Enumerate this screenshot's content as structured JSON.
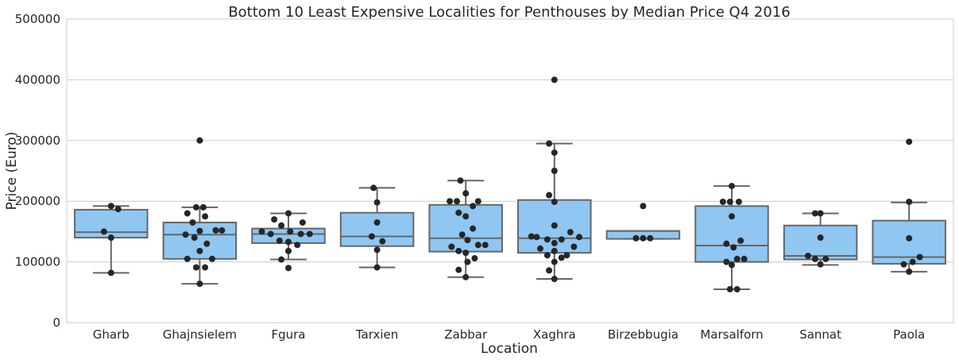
{
  "chart_data": {
    "type": "box",
    "title": "Bottom 10 Least Expensive Localities for Penthouses by Median Price Q4 2016",
    "xlabel": "Location",
    "ylabel": "Price (Euro)",
    "ylim": [
      0,
      500000
    ],
    "yticks": [
      "0",
      "100000",
      "200000",
      "300000",
      "400000",
      "500000"
    ],
    "grid": true,
    "box_color": "#8fc7f2",
    "categories": [
      "Gharb",
      "Ghajnsielem",
      "Fgura",
      "Tarxien",
      "Zabbar",
      "Xaghra",
      "Birzebbugia",
      "Marsalforn",
      "Sannat",
      "Paola"
    ],
    "boxes": [
      {
        "q1": 140000,
        "median": 149000,
        "q3": 186000,
        "whisker_low": 82000,
        "whisker_high": 192000,
        "points": [
          [
            0,
            192000
          ],
          [
            0.08,
            187000
          ],
          [
            -0.08,
            150000
          ],
          [
            0,
            140000
          ],
          [
            0,
            82000
          ]
        ]
      },
      {
        "q1": 105000,
        "median": 145000,
        "q3": 165000,
        "whisker_low": 64000,
        "whisker_high": 190000,
        "points": [
          [
            0,
            300000
          ],
          [
            -0.04,
            190000
          ],
          [
            0.04,
            190000
          ],
          [
            -0.14,
            180000
          ],
          [
            0.06,
            175000
          ],
          [
            -0.08,
            165000
          ],
          [
            0.25,
            152000
          ],
          [
            0.18,
            152000
          ],
          [
            0,
            151000
          ],
          [
            -0.16,
            145000
          ],
          [
            -0.06,
            140000
          ],
          [
            0.08,
            130000
          ],
          [
            0,
            118000
          ],
          [
            -0.14,
            105000
          ],
          [
            0.14,
            105000
          ],
          [
            -0.04,
            91000
          ],
          [
            0.06,
            91000
          ],
          [
            0,
            64000
          ]
        ]
      },
      {
        "q1": 131000,
        "median": 146000,
        "q3": 155000,
        "whisker_low": 104000,
        "whisker_high": 180000,
        "points": [
          [
            0,
            180000
          ],
          [
            -0.16,
            170000
          ],
          [
            0.16,
            165000
          ],
          [
            -0.08,
            160000
          ],
          [
            -0.3,
            150000
          ],
          [
            0.02,
            150000
          ],
          [
            -0.2,
            146000
          ],
          [
            0.14,
            146000
          ],
          [
            0.24,
            146000
          ],
          [
            -0.1,
            135000
          ],
          [
            0,
            133000
          ],
          [
            0.1,
            128000
          ],
          [
            0,
            118000
          ],
          [
            -0.08,
            104000
          ],
          [
            0,
            90000
          ]
        ]
      },
      {
        "q1": 126000,
        "median": 142000,
        "q3": 181000,
        "whisker_low": 91000,
        "whisker_high": 222000,
        "points": [
          [
            -0.04,
            222000
          ],
          [
            0,
            198000
          ],
          [
            0,
            165000
          ],
          [
            -0.06,
            142000
          ],
          [
            0.06,
            134000
          ],
          [
            0,
            120000
          ],
          [
            0,
            91000
          ]
        ]
      },
      {
        "q1": 117000,
        "median": 139000,
        "q3": 194000,
        "whisker_low": 75000,
        "whisker_high": 234000,
        "points": [
          [
            -0.06,
            234000
          ],
          [
            0,
            213000
          ],
          [
            -0.18,
            200000
          ],
          [
            -0.1,
            200000
          ],
          [
            0.14,
            200000
          ],
          [
            0.08,
            192000
          ],
          [
            -0.08,
            181000
          ],
          [
            0,
            175000
          ],
          [
            0.08,
            155000
          ],
          [
            -0.04,
            145000
          ],
          [
            0.02,
            136000
          ],
          [
            0.14,
            128000
          ],
          [
            0.22,
            128000
          ],
          [
            -0.16,
            125000
          ],
          [
            -0.08,
            118000
          ],
          [
            0,
            115000
          ],
          [
            0.1,
            106000
          ],
          [
            0.02,
            100000
          ],
          [
            -0.08,
            87000
          ],
          [
            0,
            75000
          ]
        ]
      },
      {
        "q1": 115000,
        "median": 139000,
        "q3": 202000,
        "whisker_low": 72000,
        "whisker_high": 295000,
        "points": [
          [
            0,
            400000
          ],
          [
            -0.06,
            295000
          ],
          [
            0,
            280000
          ],
          [
            0,
            250000
          ],
          [
            -0.06,
            210000
          ],
          [
            0,
            199000
          ],
          [
            0,
            160000
          ],
          [
            0.18,
            149000
          ],
          [
            -0.26,
            142000
          ],
          [
            -0.2,
            141000
          ],
          [
            0.28,
            141000
          ],
          [
            -0.08,
            137000
          ],
          [
            0.08,
            137000
          ],
          [
            0,
            131000
          ],
          [
            -0.16,
            122000
          ],
          [
            0.22,
            125000
          ],
          [
            0,
            118000
          ],
          [
            -0.08,
            111000
          ],
          [
            0.14,
            111000
          ],
          [
            0.08,
            107000
          ],
          [
            0,
            100000
          ],
          [
            -0.06,
            86000
          ],
          [
            0,
            72000
          ]
        ]
      },
      {
        "q1": 138000,
        "median": 151000,
        "q3": 151000,
        "whisker_low": 138000,
        "whisker_high": 151000,
        "points": [
          [
            0,
            192000
          ],
          [
            -0.08,
            139000
          ],
          [
            0,
            139000
          ],
          [
            0.08,
            139000
          ]
        ]
      },
      {
        "q1": 100000,
        "median": 127000,
        "q3": 192000,
        "whisker_low": 55000,
        "whisker_high": 225000,
        "points": [
          [
            0,
            225000
          ],
          [
            -0.1,
            199000
          ],
          [
            -0.02,
            199000
          ],
          [
            0.08,
            199000
          ],
          [
            0,
            175000
          ],
          [
            0.1,
            135000
          ],
          [
            -0.06,
            130000
          ],
          [
            0.02,
            124000
          ],
          [
            0.06,
            105000
          ],
          [
            0.14,
            105000
          ],
          [
            -0.06,
            100000
          ],
          [
            0,
            95000
          ],
          [
            -0.02,
            55000
          ],
          [
            0.06,
            55000
          ]
        ]
      },
      {
        "q1": 104000,
        "median": 110000,
        "q3": 160000,
        "whisker_low": 95000,
        "whisker_high": 180000,
        "points": [
          [
            -0.06,
            180000
          ],
          [
            0,
            180000
          ],
          [
            0,
            140000
          ],
          [
            -0.14,
            110000
          ],
          [
            -0.06,
            105000
          ],
          [
            0.06,
            105000
          ],
          [
            0,
            96000
          ]
        ]
      },
      {
        "q1": 97000,
        "median": 108000,
        "q3": 168000,
        "whisker_low": 84000,
        "whisker_high": 198000,
        "points": [
          [
            0,
            298000
          ],
          [
            0,
            199000
          ],
          [
            0,
            139000
          ],
          [
            0.12,
            108000
          ],
          [
            0.04,
            100000
          ],
          [
            -0.06,
            96000
          ],
          [
            0,
            84000
          ]
        ]
      }
    ]
  }
}
